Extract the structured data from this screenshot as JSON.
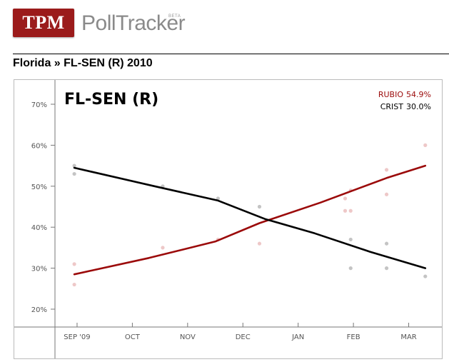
{
  "brand": {
    "logo_text": "TPM",
    "product_name": "PollTracker",
    "product_badge": "BETA"
  },
  "breadcrumb": {
    "state": "Florida",
    "separator": "»",
    "race": "FL-SEN (R) 2010"
  },
  "colors": {
    "rubio": "#9b0a0a",
    "rubio_points": "#eec8c8",
    "crist": "#000000",
    "crist_points": "#c4c4c4",
    "brand_red": "#9b1b1b"
  },
  "chart_data": {
    "type": "line",
    "title": "FL-SEN (R)",
    "ylim": [
      15,
      75
    ],
    "yticks": [
      20,
      30,
      40,
      50,
      60,
      70
    ],
    "ytick_labels": [
      "20%",
      "30%",
      "40%",
      "50%",
      "60%",
      "70%"
    ],
    "x_range": [
      8.6,
      15.6
    ],
    "xticks": [
      9.0,
      10.0,
      11.0,
      12.0,
      13.0,
      14.0,
      15.0
    ],
    "xtick_labels": [
      "SEP '09",
      "OCT",
      "NOV",
      "DEC",
      "JAN",
      "FEB",
      "MAR"
    ],
    "legend": [
      {
        "name": "RUBIO",
        "value": "54.9%"
      },
      {
        "name": "CRIST",
        "value": "30.0%"
      }
    ],
    "series": [
      {
        "name": "RUBIO",
        "trend": [
          [
            8.95,
            28.5
          ],
          [
            10.3,
            32.5
          ],
          [
            11.5,
            36.5
          ],
          [
            12.3,
            41
          ],
          [
            13.4,
            46
          ],
          [
            14.6,
            52
          ],
          [
            15.3,
            55
          ]
        ],
        "points": [
          [
            8.95,
            31
          ],
          [
            8.95,
            26
          ],
          [
            10.55,
            35
          ],
          [
            11.55,
            37
          ],
          [
            12.3,
            36
          ],
          [
            13.85,
            47
          ],
          [
            13.85,
            44
          ],
          [
            13.95,
            44
          ],
          [
            13.95,
            49
          ],
          [
            14.6,
            54
          ],
          [
            14.6,
            48
          ],
          [
            15.3,
            60
          ]
        ]
      },
      {
        "name": "CRIST",
        "trend": [
          [
            8.95,
            54.5
          ],
          [
            10.4,
            50
          ],
          [
            11.55,
            46.5
          ],
          [
            12.4,
            42
          ],
          [
            13.3,
            38.5
          ],
          [
            14.3,
            34
          ],
          [
            15.3,
            30
          ]
        ],
        "points": [
          [
            8.95,
            55
          ],
          [
            8.95,
            53
          ],
          [
            10.55,
            50
          ],
          [
            11.55,
            47
          ],
          [
            12.3,
            45
          ],
          [
            13.95,
            37
          ],
          [
            13.95,
            30
          ],
          [
            14.6,
            36
          ],
          [
            14.6,
            30
          ],
          [
            15.3,
            28
          ]
        ]
      }
    ]
  }
}
